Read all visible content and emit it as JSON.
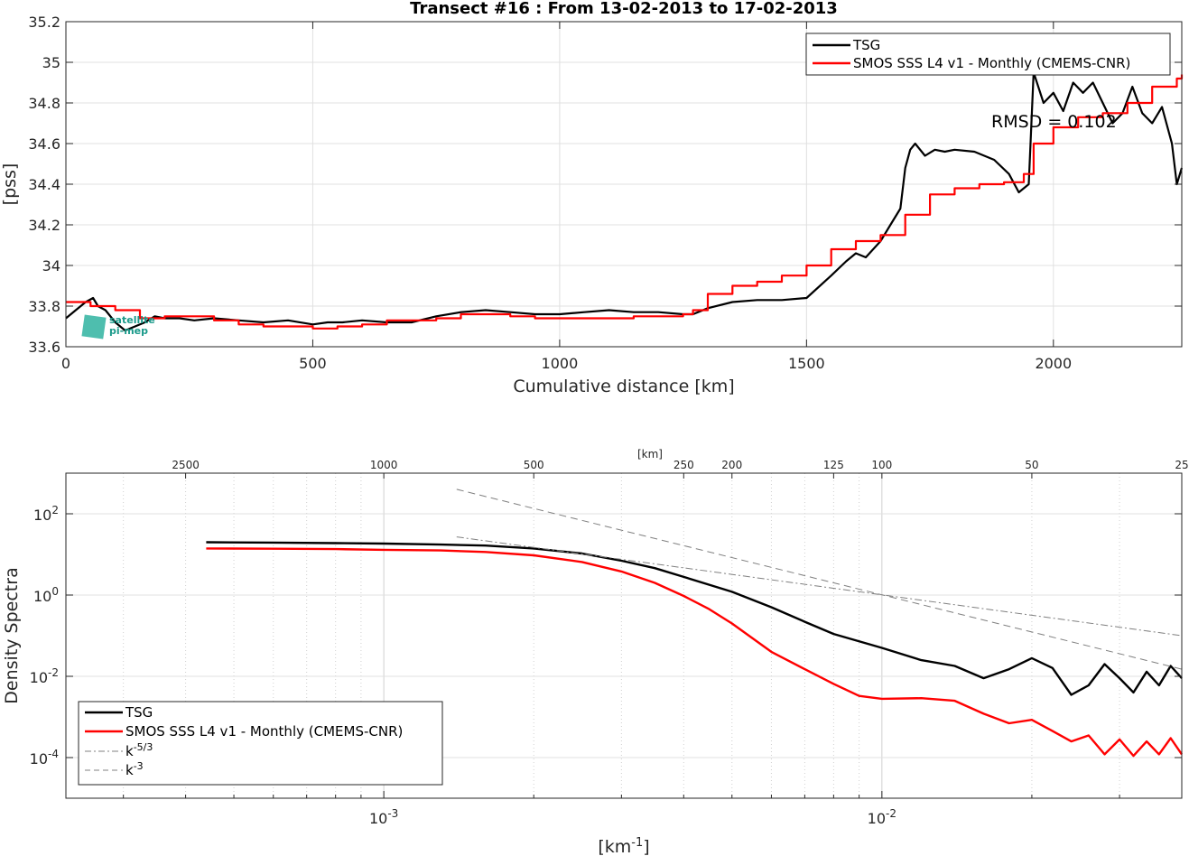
{
  "chart_data": [
    {
      "type": "line",
      "title": "Transect #16 : From 13-02-2013 to 17-02-2013",
      "xlabel": "Cumulative distance [km]",
      "ylabel": "[pss]",
      "xlim": [
        0,
        2260
      ],
      "ylim": [
        33.6,
        35.2
      ],
      "x_ticks": [
        "0",
        "500",
        "1000",
        "1500",
        "2000"
      ],
      "y_ticks": [
        "33.6",
        "33.8",
        "34",
        "34.2",
        "34.4",
        "34.6",
        "34.8",
        "35",
        "35.2"
      ],
      "grid": true,
      "legend_position": "top-right",
      "annotation": "RMSD = 0.102",
      "logo_text": [
        "satellite",
        "pi-mep"
      ],
      "series": [
        {
          "name": "TSG",
          "color": "#000000",
          "x": [
            0,
            20,
            40,
            55,
            65,
            80,
            100,
            120,
            140,
            160,
            180,
            200,
            230,
            260,
            300,
            350,
            400,
            450,
            500,
            530,
            560,
            600,
            650,
            700,
            750,
            800,
            850,
            900,
            950,
            1000,
            1050,
            1100,
            1150,
            1200,
            1250,
            1270,
            1300,
            1350,
            1400,
            1450,
            1500,
            1550,
            1580,
            1600,
            1620,
            1650,
            1670,
            1690,
            1700,
            1710,
            1720,
            1740,
            1760,
            1780,
            1800,
            1840,
            1880,
            1910,
            1930,
            1940,
            1950,
            1960,
            1980,
            2000,
            2020,
            2040,
            2060,
            2080,
            2100,
            2120,
            2140,
            2160,
            2180,
            2200,
            2220,
            2240,
            2250,
            2260
          ],
          "y": [
            33.74,
            33.78,
            33.82,
            33.84,
            33.8,
            33.78,
            33.72,
            33.68,
            33.7,
            33.72,
            33.75,
            33.74,
            33.74,
            33.73,
            33.74,
            33.73,
            33.72,
            33.73,
            33.71,
            33.72,
            33.72,
            33.73,
            33.72,
            33.72,
            33.75,
            33.77,
            33.78,
            33.77,
            33.76,
            33.76,
            33.77,
            33.78,
            33.77,
            33.77,
            33.76,
            33.76,
            33.79,
            33.82,
            33.83,
            33.83,
            33.84,
            33.95,
            34.02,
            34.06,
            34.04,
            34.12,
            34.2,
            34.28,
            34.48,
            34.57,
            34.6,
            34.54,
            34.57,
            34.56,
            34.57,
            34.56,
            34.52,
            34.45,
            34.36,
            34.38,
            34.4,
            34.95,
            34.8,
            34.85,
            34.76,
            34.9,
            34.85,
            34.9,
            34.8,
            34.7,
            34.75,
            34.88,
            34.75,
            34.7,
            34.78,
            34.6,
            34.4,
            34.48
          ]
        },
        {
          "name": "SMOS SSS L4 v1 - Monthly (CMEMS-CNR)",
          "color": "#ff0000",
          "x": [
            0,
            50,
            100,
            150,
            200,
            250,
            300,
            350,
            400,
            450,
            500,
            550,
            600,
            650,
            700,
            750,
            800,
            850,
            900,
            950,
            1000,
            1050,
            1100,
            1150,
            1200,
            1250,
            1270,
            1300,
            1350,
            1400,
            1450,
            1500,
            1550,
            1600,
            1650,
            1700,
            1750,
            1800,
            1850,
            1900,
            1940,
            1960,
            2000,
            2050,
            2100,
            2150,
            2200,
            2250,
            2260
          ],
          "y": [
            33.82,
            33.8,
            33.78,
            33.74,
            33.75,
            33.75,
            33.73,
            33.71,
            33.7,
            33.7,
            33.69,
            33.7,
            33.71,
            33.73,
            33.73,
            33.74,
            33.76,
            33.76,
            33.75,
            33.74,
            33.74,
            33.74,
            33.74,
            33.75,
            33.75,
            33.76,
            33.78,
            33.86,
            33.9,
            33.92,
            33.95,
            34.0,
            34.08,
            34.12,
            34.15,
            34.25,
            34.35,
            34.38,
            34.4,
            34.41,
            34.45,
            34.6,
            34.68,
            34.73,
            34.75,
            34.8,
            34.88,
            34.92,
            34.94
          ]
        }
      ]
    },
    {
      "type": "line",
      "title": "",
      "xlabel": "[km-1]",
      "ylabel": "Density Spectra",
      "xscale": "log",
      "yscale": "log",
      "xlim": [
        0.00023,
        0.04
      ],
      "ylim": [
        1e-05,
        1000
      ],
      "x_ticks": [
        "10-3",
        "10-2"
      ],
      "y_ticks": [
        "10-4",
        "10-2",
        "100",
        "102"
      ],
      "top_axis_label": "[km]",
      "top_ticks": [
        "2500",
        "1000",
        "500",
        "250",
        "200",
        "125",
        "100",
        "50",
        "25"
      ],
      "top_tick_values_km": [
        2500,
        1000,
        500,
        250,
        200,
        125,
        100,
        50,
        25
      ],
      "grid": true,
      "legend_position": "bottom-left",
      "series": [
        {
          "name": "TSG",
          "color": "#000000",
          "style": "solid",
          "x": [
            0.00044,
            0.0006,
            0.0008,
            0.001,
            0.0013,
            0.0016,
            0.002,
            0.0025,
            0.003,
            0.0035,
            0.004,
            0.005,
            0.006,
            0.007,
            0.008,
            0.01,
            0.012,
            0.014,
            0.016,
            0.018,
            0.02,
            0.022,
            0.024,
            0.026,
            0.028,
            0.03,
            0.032,
            0.034,
            0.036,
            0.038,
            0.04
          ],
          "y": [
            20,
            19.5,
            19,
            18.5,
            17.5,
            16.5,
            14,
            10.5,
            7,
            4.6,
            2.8,
            1.2,
            0.5,
            0.22,
            0.11,
            0.05,
            0.025,
            0.018,
            0.009,
            0.015,
            0.028,
            0.016,
            0.0035,
            0.006,
            0.02,
            0.009,
            0.004,
            0.013,
            0.006,
            0.018,
            0.009
          ]
        },
        {
          "name": "SMOS SSS L4 v1 - Monthly (CMEMS-CNR)",
          "color": "#ff0000",
          "style": "solid",
          "x": [
            0.00044,
            0.0006,
            0.0008,
            0.001,
            0.0013,
            0.0016,
            0.002,
            0.0025,
            0.003,
            0.0035,
            0.004,
            0.0045,
            0.005,
            0.006,
            0.007,
            0.008,
            0.009,
            0.01,
            0.012,
            0.014,
            0.016,
            0.018,
            0.02,
            0.022,
            0.024,
            0.026,
            0.028,
            0.03,
            0.032,
            0.034,
            0.036,
            0.038,
            0.04
          ],
          "y": [
            14,
            13.8,
            13.5,
            13,
            12.5,
            11.5,
            9.5,
            6.5,
            3.8,
            2,
            0.95,
            0.45,
            0.2,
            0.04,
            0.015,
            0.0065,
            0.0033,
            0.0028,
            0.0029,
            0.0025,
            0.0012,
            0.0007,
            0.00085,
            0.00045,
            0.00025,
            0.00035,
            0.00012,
            0.00028,
            0.00011,
            0.00025,
            0.00012,
            0.0003,
            0.00012
          ]
        },
        {
          "name": "k-5/3",
          "color": "#808080",
          "style": "dashdot",
          "x": [
            0.0014,
            0.04
          ],
          "y": [
            27,
            0.1
          ]
        },
        {
          "name": "k-3",
          "color": "#808080",
          "style": "dashed",
          "x": [
            0.0014,
            0.04
          ],
          "y": [
            400,
            0.015
          ]
        }
      ]
    }
  ]
}
